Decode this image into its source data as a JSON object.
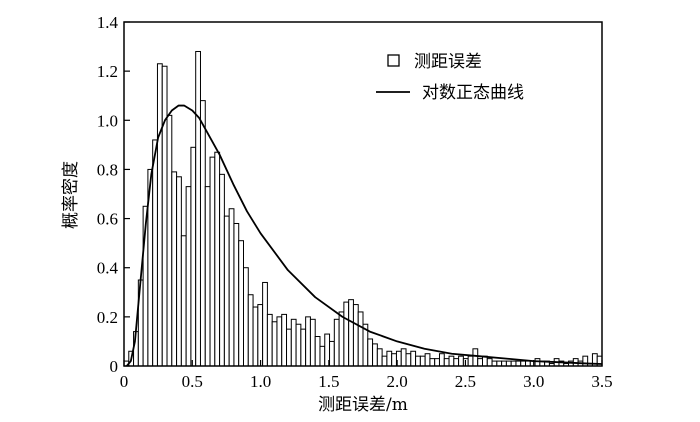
{
  "chart_data": {
    "type": "bar",
    "subtype": "histogram_with_fitted_curve",
    "xlabel": "测距误差/m",
    "ylabel": "概率密度",
    "xlim": [
      0,
      3.5
    ],
    "ylim": [
      0,
      1.4
    ],
    "x_ticks": [
      "0",
      "0.5",
      "1.0",
      "1.5",
      "2.0",
      "2.5",
      "3.0",
      "3.5"
    ],
    "y_ticks": [
      "0",
      "0.2",
      "0.4",
      "0.6",
      "0.8",
      "1.0",
      "1.2",
      "1.4"
    ],
    "x_tick_values": [
      0,
      0.5,
      1.0,
      1.5,
      2.0,
      2.5,
      3.0,
      3.5
    ],
    "y_tick_values": [
      0,
      0.2,
      0.4,
      0.6,
      0.8,
      1.0,
      1.2,
      1.4
    ],
    "grid": false,
    "legend": {
      "placement": "top-right",
      "entries": [
        {
          "label": "测距误差",
          "marker": "square"
        },
        {
          "label": "对数正态曲线",
          "marker": "line"
        }
      ]
    },
    "histogram": {
      "name": "测距误差",
      "bin_width": 0.035,
      "x_start": 0.0,
      "values": [
        0.02,
        0.06,
        0.14,
        0.35,
        0.65,
        0.8,
        0.92,
        1.23,
        1.22,
        1.02,
        0.79,
        0.77,
        0.53,
        0.73,
        0.89,
        1.28,
        1.08,
        0.73,
        0.85,
        0.87,
        0.78,
        0.61,
        0.64,
        0.58,
        0.51,
        0.4,
        0.29,
        0.24,
        0.25,
        0.34,
        0.21,
        0.18,
        0.2,
        0.21,
        0.15,
        0.19,
        0.17,
        0.15,
        0.2,
        0.19,
        0.12,
        0.08,
        0.13,
        0.1,
        0.19,
        0.22,
        0.26,
        0.27,
        0.25,
        0.22,
        0.17,
        0.11,
        0.09,
        0.07,
        0.04,
        0.06,
        0.05,
        0.06,
        0.07,
        0.05,
        0.06,
        0.04,
        0.04,
        0.05,
        0.03,
        0.03,
        0.05,
        0.03,
        0.04,
        0.03,
        0.04,
        0.03,
        0.04,
        0.07,
        0.03,
        0.04,
        0.03,
        0.02,
        0.02,
        0.02,
        0.02,
        0.02,
        0.02,
        0.02,
        0.02,
        0.02,
        0.03,
        0.02,
        0.02,
        0.01,
        0.03,
        0.02,
        0.01,
        0.02,
        0.03,
        0.02,
        0.04,
        0.01,
        0.05,
        0.04
      ]
    },
    "curve": {
      "name": "对数正态曲线",
      "x": [
        0.02,
        0.05,
        0.08,
        0.1,
        0.13,
        0.16,
        0.2,
        0.25,
        0.3,
        0.35,
        0.4,
        0.44,
        0.5,
        0.55,
        0.6,
        0.7,
        0.8,
        0.9,
        1.0,
        1.2,
        1.4,
        1.6,
        1.8,
        2.0,
        2.2,
        2.4,
        2.6,
        2.8,
        3.0,
        3.2,
        3.4,
        3.5
      ],
      "y": [
        0.0,
        0.02,
        0.1,
        0.22,
        0.4,
        0.58,
        0.78,
        0.93,
        1.0,
        1.04,
        1.06,
        1.06,
        1.04,
        1.01,
        0.96,
        0.86,
        0.74,
        0.63,
        0.54,
        0.39,
        0.28,
        0.2,
        0.14,
        0.1,
        0.07,
        0.05,
        0.04,
        0.03,
        0.02,
        0.015,
        0.01,
        0.008
      ]
    }
  }
}
